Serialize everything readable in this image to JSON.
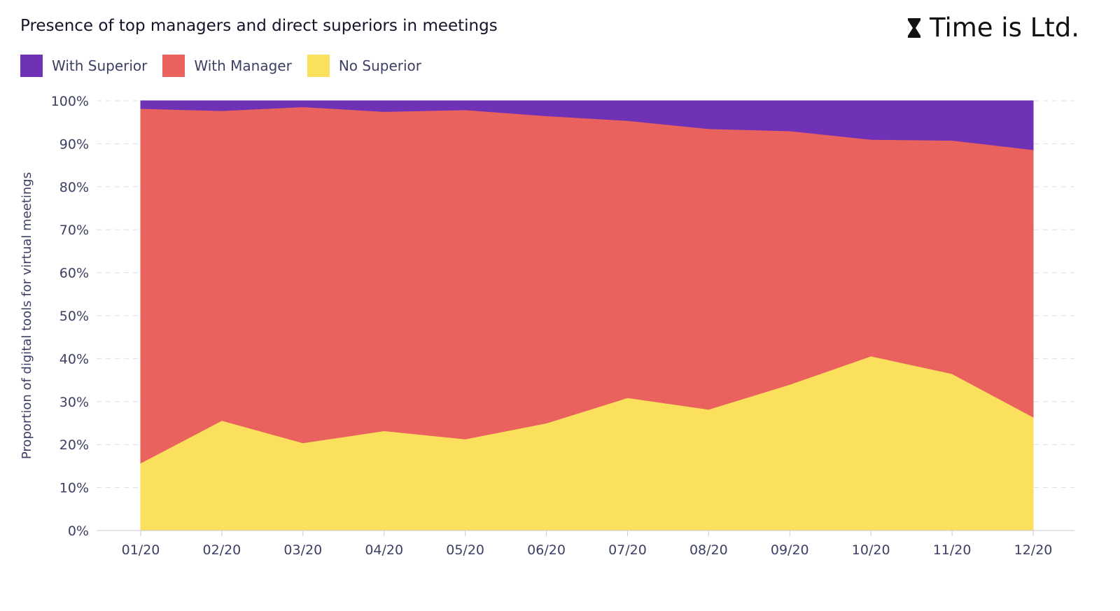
{
  "header": {
    "title": "Presence of top managers and direct superiors in meetings",
    "brand": "Time is Ltd.",
    "brand_icon": "hourglass-icon"
  },
  "legend": [
    {
      "label": "With Superior",
      "color": "#6f31b5"
    },
    {
      "label": "With Manager",
      "color": "#e9625e"
    },
    {
      "label": "No Superior",
      "color": "#fbe05e"
    }
  ],
  "chart_data": {
    "type": "area",
    "stacked": true,
    "title": "Presence of top managers and direct superiors in meetings",
    "xlabel": "",
    "ylabel": "Proportion of digital tools for virtual meetings",
    "x": [
      "01/20",
      "02/20",
      "03/20",
      "04/20",
      "05/20",
      "06/20",
      "07/20",
      "08/20",
      "09/20",
      "10/20",
      "11/20",
      "12/20"
    ],
    "ylim": [
      0,
      100
    ],
    "yticks": [
      "0%",
      "10%",
      "20%",
      "30%",
      "40%",
      "50%",
      "60%",
      "70%",
      "80%",
      "90%",
      "100%"
    ],
    "grid": true,
    "legend_position": "top-left",
    "series": [
      {
        "name": "No Superior",
        "color": "#fbe05e",
        "values": [
          15.7,
          25.6,
          20.4,
          23.2,
          21.3,
          25.0,
          30.9,
          28.2,
          34.0,
          40.6,
          36.5,
          26.4
        ]
      },
      {
        "name": "With Manager",
        "color": "#e9625e",
        "values": [
          82.5,
          72.1,
          78.2,
          74.3,
          76.6,
          71.5,
          64.5,
          65.3,
          59.0,
          50.4,
          54.3,
          62.2
        ]
      },
      {
        "name": "With Superior",
        "color": "#6f31b5",
        "values": [
          1.8,
          2.3,
          1.4,
          2.5,
          2.1,
          3.5,
          4.6,
          6.5,
          7.0,
          9.0,
          9.2,
          11.4
        ]
      }
    ]
  }
}
